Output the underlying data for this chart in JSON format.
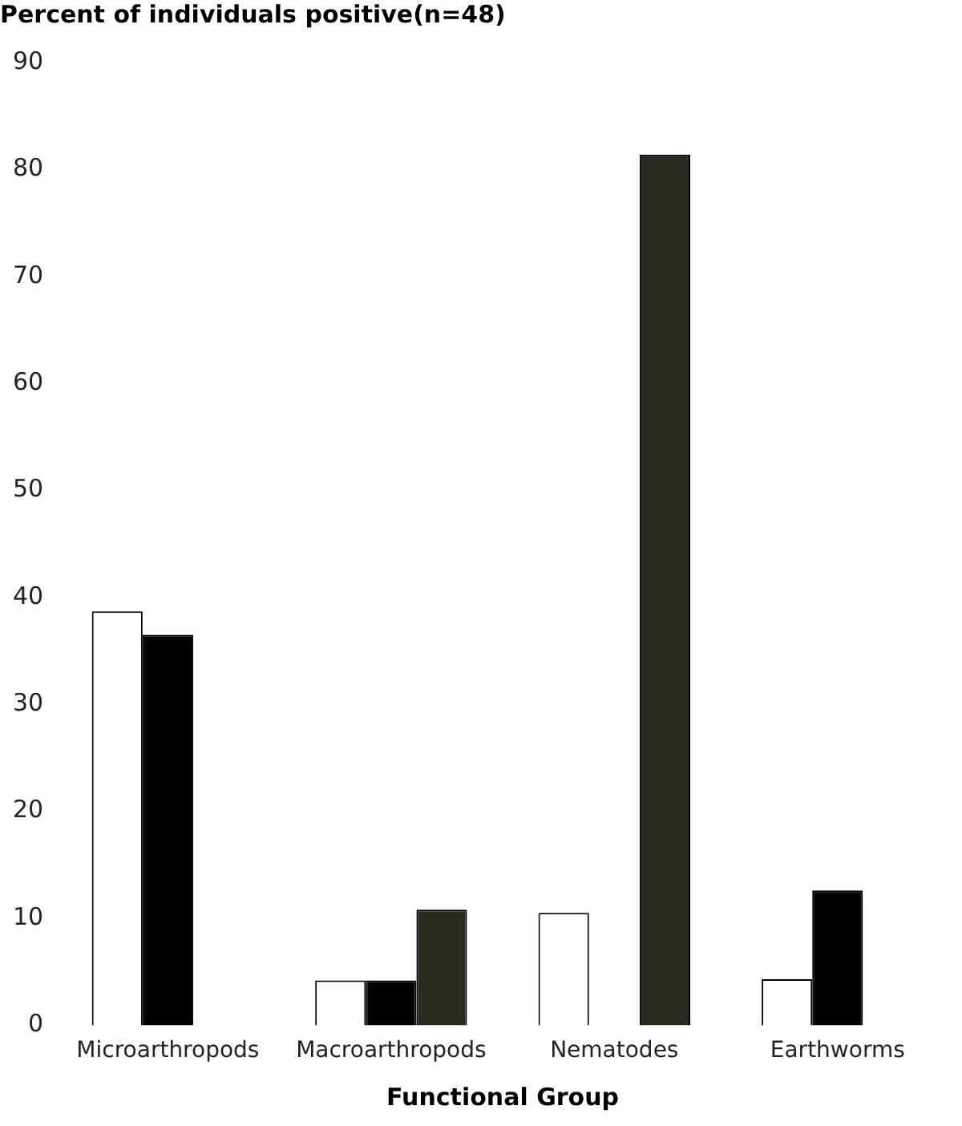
{
  "chart_data": {
    "type": "bar",
    "ylabel": "Percent of individuals positive(n=48)",
    "xlabel": "Functional Group",
    "categories": [
      "Microarthropods",
      "Macroarthropods",
      "Nematodes",
      "Earthworms"
    ],
    "series": [
      {
        "color": "#ffffff",
        "values": [
          38.7,
          4.2,
          10.5,
          4.3
        ]
      },
      {
        "color": "#000000",
        "values": [
          36.5,
          4.2,
          null,
          12.6
        ]
      },
      {
        "color": "#2b2a1f",
        "values": [
          null,
          10.8,
          81.4,
          null
        ]
      }
    ],
    "ylim": [
      0,
      90
    ],
    "yticks": [
      0,
      10,
      20,
      30,
      40,
      50,
      60,
      70,
      80,
      90
    ],
    "grid": false,
    "legend": false
  }
}
